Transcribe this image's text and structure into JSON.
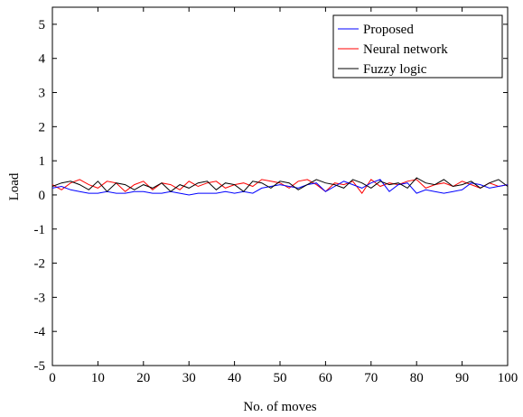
{
  "chart_data": {
    "type": "line",
    "title": "",
    "xlabel": "No. of moves",
    "ylabel": "Load",
    "xlim": [
      0,
      100
    ],
    "ylim": [
      -5,
      5.5
    ],
    "xticks": [
      0,
      10,
      20,
      30,
      40,
      50,
      60,
      70,
      80,
      90,
      100
    ],
    "yticks": [
      -5,
      -4,
      -3,
      -2,
      -1,
      0,
      1,
      2,
      3,
      4,
      5
    ],
    "legend_position": "top-right",
    "grid": false,
    "series": [
      {
        "name": "Proposed",
        "color": "#0000ff",
        "x": [
          0,
          2,
          4,
          6,
          8,
          10,
          12,
          14,
          16,
          18,
          20,
          22,
          24,
          26,
          28,
          30,
          32,
          34,
          36,
          38,
          40,
          42,
          44,
          46,
          48,
          50,
          52,
          54,
          56,
          58,
          60,
          62,
          64,
          66,
          68,
          70,
          72,
          74,
          76,
          78,
          80,
          82,
          84,
          86,
          88,
          90,
          92,
          94,
          96,
          98,
          100
        ],
        "y": [
          0.2,
          0.25,
          0.15,
          0.1,
          0.05,
          0.05,
          0.1,
          0.05,
          0.05,
          0.1,
          0.1,
          0.05,
          0.05,
          0.1,
          0.05,
          0.0,
          0.05,
          0.05,
          0.05,
          0.1,
          0.05,
          0.1,
          0.05,
          0.2,
          0.25,
          0.3,
          0.25,
          0.2,
          0.3,
          0.35,
          0.1,
          0.25,
          0.4,
          0.3,
          0.2,
          0.35,
          0.45,
          0.1,
          0.3,
          0.35,
          0.05,
          0.15,
          0.1,
          0.05,
          0.1,
          0.15,
          0.35,
          0.3,
          0.2,
          0.25,
          0.3
        ]
      },
      {
        "name": "Neural network",
        "color": "#ff0000",
        "x": [
          0,
          2,
          4,
          6,
          8,
          10,
          12,
          14,
          16,
          18,
          20,
          22,
          24,
          26,
          28,
          30,
          32,
          34,
          36,
          38,
          40,
          42,
          44,
          46,
          48,
          50,
          52,
          54,
          56,
          58,
          60,
          62,
          64,
          66,
          68,
          70,
          72,
          74,
          76,
          78,
          80,
          82,
          84,
          86,
          88,
          90,
          92,
          94,
          96,
          98,
          100
        ],
        "y": [
          0.3,
          0.15,
          0.35,
          0.45,
          0.3,
          0.2,
          0.4,
          0.35,
          0.1,
          0.3,
          0.4,
          0.15,
          0.35,
          0.3,
          0.15,
          0.4,
          0.25,
          0.35,
          0.4,
          0.2,
          0.3,
          0.35,
          0.25,
          0.45,
          0.4,
          0.35,
          0.2,
          0.4,
          0.45,
          0.3,
          0.1,
          0.35,
          0.3,
          0.4,
          0.05,
          0.45,
          0.25,
          0.35,
          0.3,
          0.4,
          0.45,
          0.2,
          0.3,
          0.35,
          0.25,
          0.4,
          0.3,
          0.2,
          0.35,
          0.25,
          0.3
        ]
      },
      {
        "name": "Fuzzy logic",
        "color": "#000000",
        "x": [
          0,
          2,
          4,
          6,
          8,
          10,
          12,
          14,
          16,
          18,
          20,
          22,
          24,
          26,
          28,
          30,
          32,
          34,
          36,
          38,
          40,
          42,
          44,
          46,
          48,
          50,
          52,
          54,
          56,
          58,
          60,
          62,
          64,
          66,
          68,
          70,
          72,
          74,
          76,
          78,
          80,
          82,
          84,
          86,
          88,
          90,
          92,
          94,
          96,
          98,
          100
        ],
        "y": [
          0.25,
          0.35,
          0.4,
          0.3,
          0.15,
          0.4,
          0.1,
          0.35,
          0.3,
          0.15,
          0.3,
          0.2,
          0.35,
          0.1,
          0.3,
          0.2,
          0.35,
          0.4,
          0.15,
          0.35,
          0.3,
          0.1,
          0.4,
          0.35,
          0.2,
          0.4,
          0.35,
          0.15,
          0.3,
          0.45,
          0.35,
          0.3,
          0.2,
          0.45,
          0.35,
          0.2,
          0.4,
          0.3,
          0.35,
          0.2,
          0.5,
          0.35,
          0.3,
          0.45,
          0.25,
          0.3,
          0.4,
          0.2,
          0.35,
          0.45,
          0.25
        ]
      }
    ]
  }
}
